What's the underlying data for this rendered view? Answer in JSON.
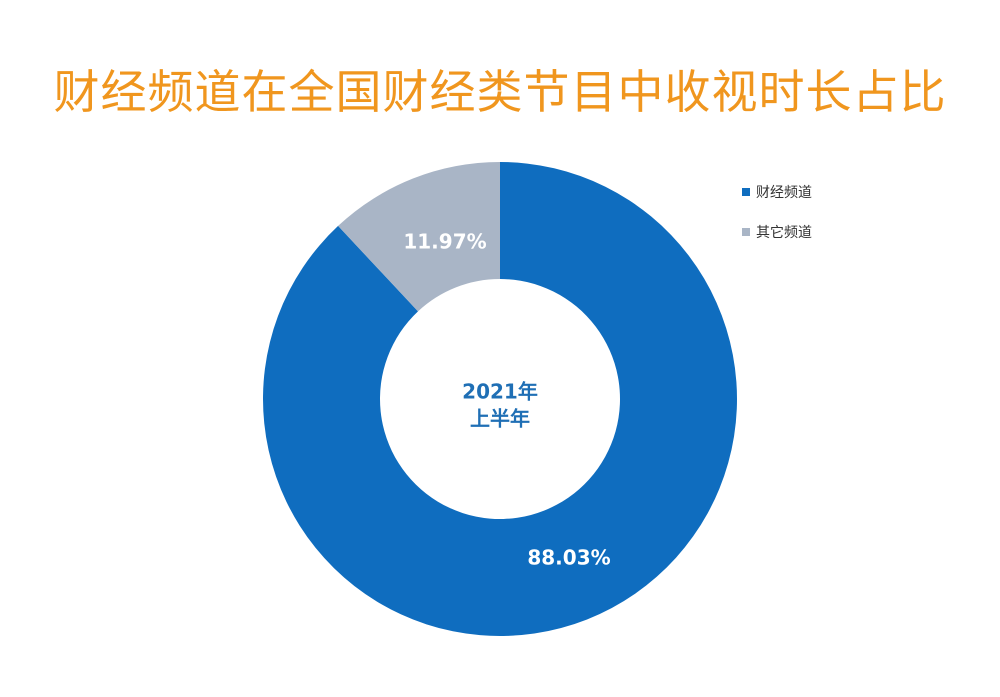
{
  "chart_data": {
    "type": "pie",
    "title": "财经频道在全国财经类节目中收视时长占比",
    "center_label": [
      "2021年",
      "上半年"
    ],
    "categories": [
      "财经频道",
      "其它频道"
    ],
    "values": [
      88.03,
      11.97
    ],
    "value_labels": [
      "88.03%",
      "11.97%"
    ],
    "colors": [
      "#0F6DBF",
      "#A9B5C6"
    ],
    "legend_position": "top-right",
    "donut": true
  }
}
